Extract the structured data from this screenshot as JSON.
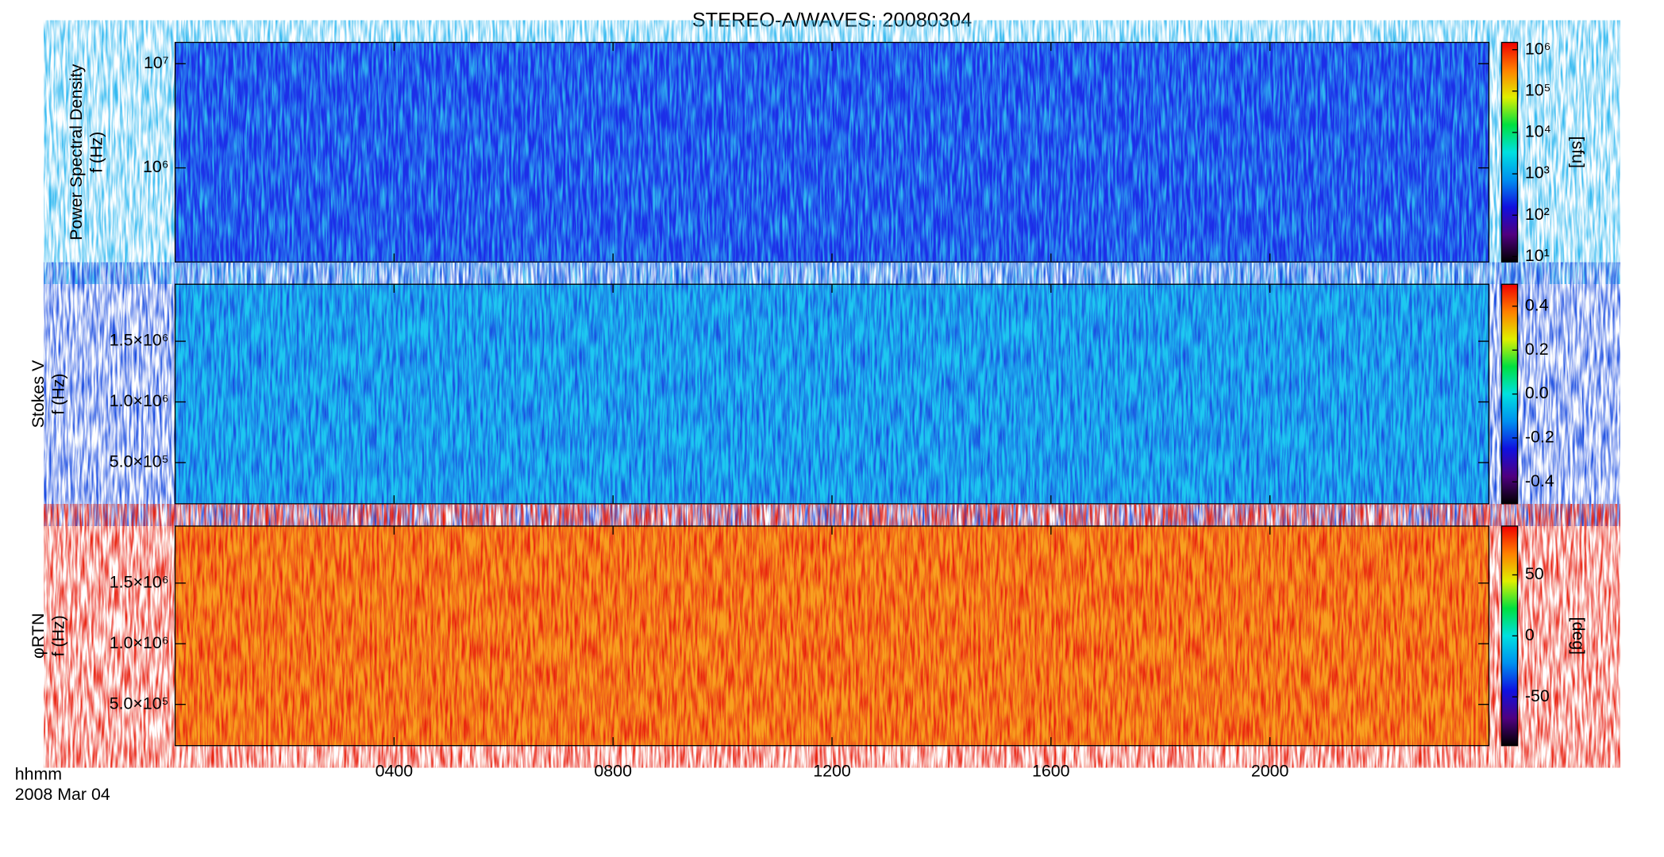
{
  "title": "STEREO-A/WAVES: 20080304",
  "time_axis": {
    "label": "hhmm",
    "date": "2008 Mar 04",
    "xlim": [
      0,
      24
    ],
    "xticks": [
      {
        "value": 4,
        "label": "0400"
      },
      {
        "value": 8,
        "label": "0800"
      },
      {
        "value": 12,
        "label": "1200"
      },
      {
        "value": 16,
        "label": "1600"
      },
      {
        "value": 20,
        "label": "2000"
      }
    ]
  },
  "chart_data": [
    {
      "type": "spectrogram",
      "ylabel": [
        "Power Spectral Density",
        "f (Hz)"
      ],
      "log": true,
      "ylim": [
        125000,
        16000000
      ],
      "yticks": [
        {
          "value": 1000000,
          "label": "10⁶"
        },
        {
          "value": 10000000,
          "label": "10⁷"
        }
      ],
      "colors": [
        "#1c2ee8",
        "#30b8f0"
      ],
      "colorbar": {
        "label": "[sfu]",
        "log": true,
        "lim": [
          7.4,
          1500000
        ],
        "ticks": [
          {
            "value": 10,
            "label": "10¹"
          },
          {
            "value": 100,
            "label": "10²"
          },
          {
            "value": 1000,
            "label": "10³"
          },
          {
            "value": 10000,
            "label": "10⁴"
          },
          {
            "value": 100000,
            "label": "10⁵"
          },
          {
            "value": 1000000,
            "label": "10⁶"
          }
        ]
      }
    },
    {
      "type": "spectrogram",
      "ylabel": [
        "Stokes V",
        "f (Hz)"
      ],
      "log": false,
      "ylim": [
        160000,
        1970000
      ],
      "yticks": [
        {
          "value": 500000,
          "label": "5.0×10⁵"
        },
        {
          "value": 1000000,
          "label": "1.0×10⁶"
        },
        {
          "value": 1500000,
          "label": "1.5×10⁶"
        }
      ],
      "colors": [
        "#1ec8f0",
        "#1a4ce0"
      ],
      "colorbar": {
        "label": "",
        "log": false,
        "lim": [
          -0.5,
          0.5
        ],
        "ticks": [
          -0.4,
          -0.2,
          {
            "value": 0,
            "label": "0.0"
          },
          0.2,
          0.4
        ]
      }
    },
    {
      "type": "spectrogram",
      "ylabel": [
        "φRTN",
        "f (Hz)"
      ],
      "log": false,
      "ylim": [
        160000,
        1970000
      ],
      "yticks": [
        {
          "value": 500000,
          "label": "5.0×10⁵"
        },
        {
          "value": 1000000,
          "label": "1.0×10⁶"
        },
        {
          "value": 1500000,
          "label": "1.5×10⁶"
        }
      ],
      "colors": [
        "#f8a020",
        "#e82010"
      ],
      "colorbar": {
        "label": "[deg]",
        "log": false,
        "lim": [
          -90,
          90
        ],
        "ticks": [
          -50,
          0,
          50
        ]
      }
    }
  ],
  "colormap": [
    "#000000",
    "#500080",
    "#1010e0",
    "#0090f0",
    "#00e0e0",
    "#00e040",
    "#e0f000",
    "#ff8000",
    "#f00000"
  ]
}
